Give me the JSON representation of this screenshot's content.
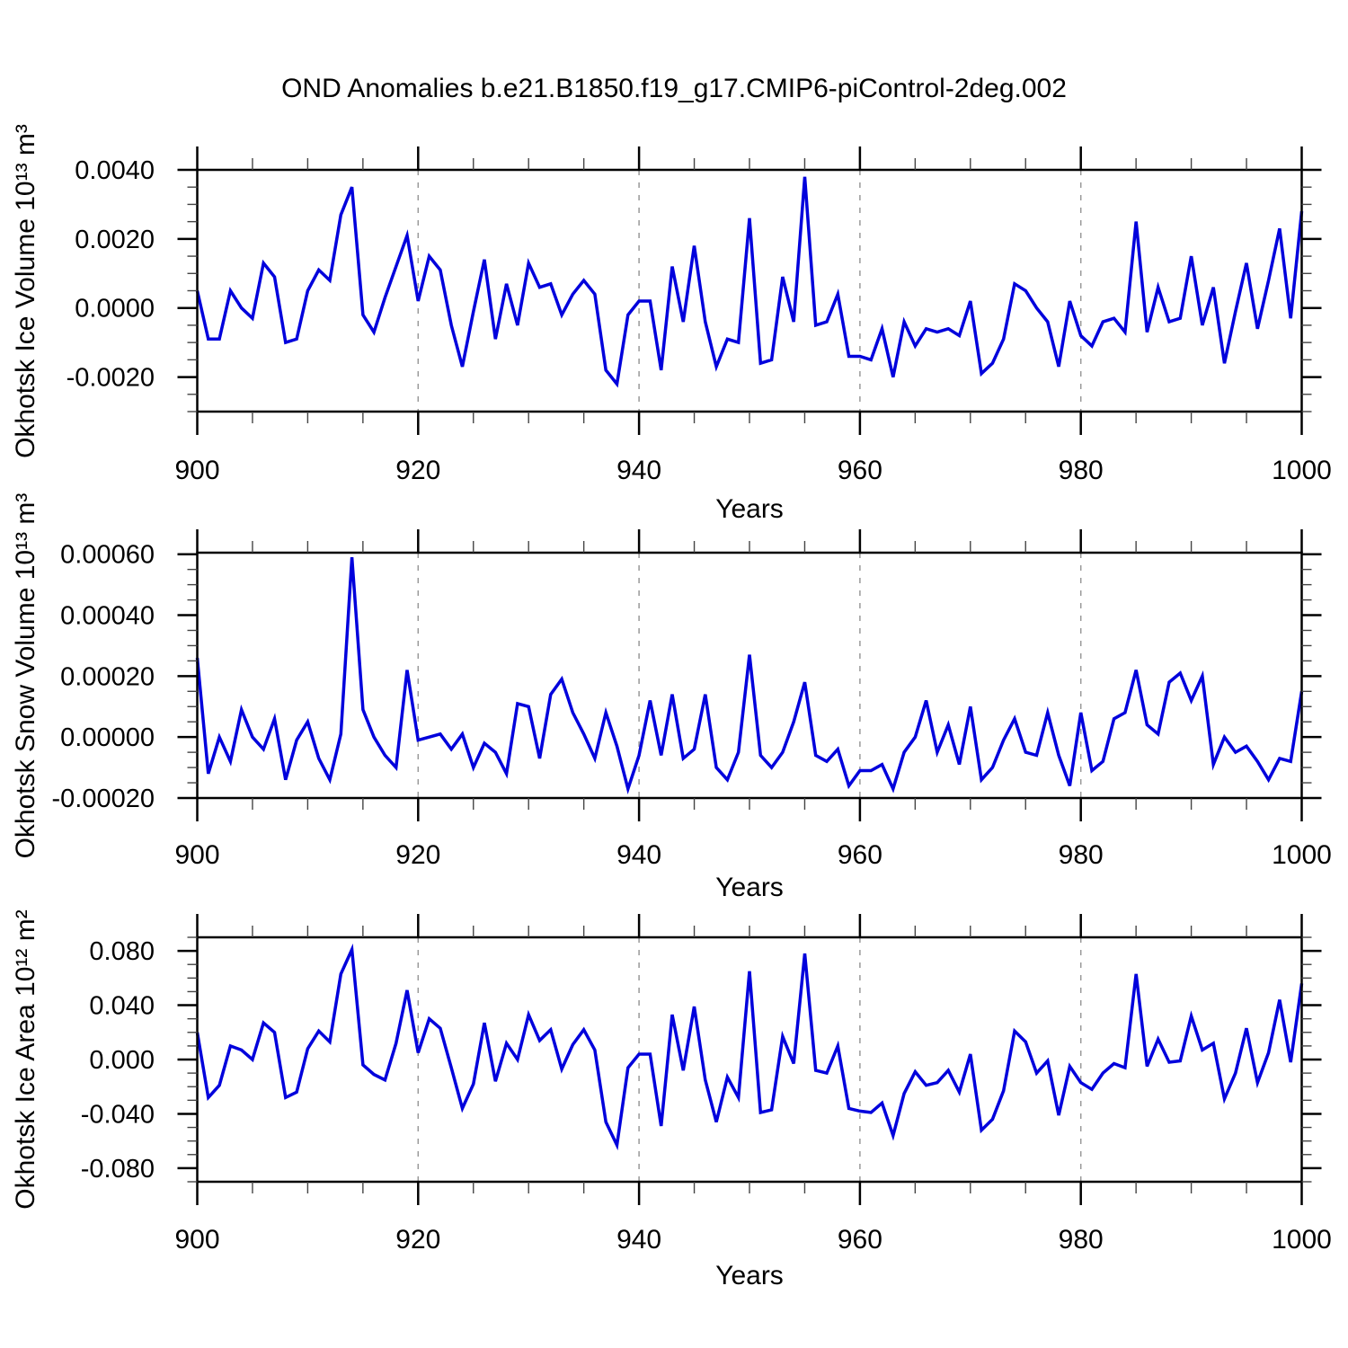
{
  "title": "OND Anomalies b.e21.B1850.f19_g17.CMIP6-piControl-2deg.002",
  "xlabel": "Years",
  "line_color": "#0000DC",
  "chart_data": [
    {
      "type": "line",
      "ylabel": "Okhotsk Ice Volume 10¹³ m³",
      "x_start": 900,
      "x_end": 1000,
      "xticks": [
        900,
        920,
        940,
        960,
        980,
        1000
      ],
      "x_minor_step": 5,
      "grid_x": [
        920,
        940,
        960,
        980
      ],
      "ylim": [
        -0.003,
        0.004
      ],
      "yticks": [
        0.004,
        0.002,
        0.0,
        -0.002
      ],
      "ytick_labels": [
        "0.0040",
        "0.0020",
        "0.0000",
        "-0.0020"
      ],
      "y_minor_step": 0.0005,
      "legend": null,
      "grid": "vertical-dashed",
      "values": [
        0.0005,
        -0.0009,
        -0.0009,
        0.0005,
        0.0,
        -0.0003,
        0.0013,
        0.0009,
        -0.001,
        -0.0009,
        0.0005,
        0.0011,
        0.0008,
        0.0027,
        0.0035,
        -0.0002,
        -0.0007,
        0.0003,
        0.0012,
        0.0021,
        0.0002,
        0.0015,
        0.0011,
        -0.0005,
        -0.0017,
        -0.0001,
        0.0014,
        -0.0009,
        0.0007,
        -0.0005,
        0.0013,
        0.0006,
        0.0007,
        -0.0002,
        0.0004,
        0.0008,
        0.0004,
        -0.0018,
        -0.0022,
        -0.0002,
        0.0002,
        0.0002,
        -0.0018,
        0.0012,
        -0.0004,
        0.0018,
        -0.0004,
        -0.0017,
        -0.0009,
        -0.001,
        0.0026,
        -0.0016,
        -0.0015,
        0.0009,
        -0.0004,
        0.0038,
        -0.0005,
        -0.0004,
        0.0004,
        -0.0014,
        -0.0014,
        -0.0015,
        -0.0006,
        -0.002,
        -0.0004,
        -0.0011,
        -0.0006,
        -0.0007,
        -0.0006,
        -0.0008,
        0.0002,
        -0.0019,
        -0.0016,
        -0.0009,
        0.0007,
        0.0005,
        0.0,
        -0.0004,
        -0.0017,
        0.0002,
        -0.0008,
        -0.0011,
        -0.0004,
        -0.0003,
        -0.0007,
        0.0025,
        -0.0007,
        0.0006,
        -0.0004,
        -0.0003,
        0.0015,
        -0.0005,
        0.0006,
        -0.0016,
        -0.0001,
        0.0013,
        -0.0006,
        0.0008,
        0.0023,
        -0.0003,
        0.0028
      ]
    },
    {
      "type": "line",
      "ylabel": "Okhotsk Snow Volume 10¹³ m³",
      "x_start": 900,
      "x_end": 1000,
      "xticks": [
        900,
        920,
        940,
        960,
        980,
        1000
      ],
      "x_minor_step": 5,
      "grid_x": [
        920,
        940,
        960,
        980
      ],
      "ylim": [
        -0.0002,
        0.000605
      ],
      "yticks": [
        0.0006,
        0.0004,
        0.0002,
        0.0,
        -0.0002
      ],
      "ytick_labels": [
        "0.00060",
        "0.00040",
        "0.00020",
        "0.00000",
        "-0.00020"
      ],
      "y_minor_step": 5e-05,
      "legend": null,
      "grid": "vertical-dashed",
      "values": [
        0.00026,
        -0.00012,
        0.0,
        -8e-05,
        9e-05,
        0.0,
        -4e-05,
        6e-05,
        -0.00014,
        -1e-05,
        5e-05,
        -7e-05,
        -0.00014,
        1e-05,
        0.00059,
        9e-05,
        0.0,
        -6e-05,
        -0.0001,
        0.00022,
        -1e-05,
        0.0,
        1e-05,
        -4e-05,
        1e-05,
        -0.0001,
        -2e-05,
        -5e-05,
        -0.00012,
        0.00011,
        0.0001,
        -7e-05,
        0.00014,
        0.00019,
        8e-05,
        1e-05,
        -7e-05,
        8e-05,
        -3e-05,
        -0.00017,
        -6e-05,
        0.00012,
        -6e-05,
        0.00014,
        -7e-05,
        -4e-05,
        0.00014,
        -0.0001,
        -0.00014,
        -5e-05,
        0.00027,
        -6e-05,
        -0.0001,
        -5e-05,
        5e-05,
        0.00018,
        -6e-05,
        -8e-05,
        -4e-05,
        -0.00016,
        -0.00011,
        -0.00011,
        -9e-05,
        -0.00017,
        -5e-05,
        0.0,
        0.00012,
        -5e-05,
        4e-05,
        -9e-05,
        0.0001,
        -0.00014,
        -0.0001,
        -1e-05,
        6e-05,
        -5e-05,
        -6e-05,
        8e-05,
        -6e-05,
        -0.00016,
        8e-05,
        -0.00011,
        -8e-05,
        6e-05,
        8e-05,
        0.00022,
        4e-05,
        1e-05,
        0.00018,
        0.00021,
        0.00012,
        0.0002,
        -9e-05,
        0.0,
        -5e-05,
        -3e-05,
        -8e-05,
        -0.00014,
        -7e-05,
        -8e-05,
        0.00015
      ]
    },
    {
      "type": "line",
      "ylabel": "Okhotsk Ice Area 10¹² m²",
      "x_start": 900,
      "x_end": 1000,
      "xticks": [
        900,
        920,
        940,
        960,
        980,
        1000
      ],
      "x_minor_step": 5,
      "grid_x": [
        920,
        940,
        960,
        980
      ],
      "ylim": [
        -0.09,
        0.09
      ],
      "yticks": [
        0.08,
        0.04,
        0.0,
        -0.04,
        -0.08
      ],
      "ytick_labels": [
        "0.080",
        "0.040",
        "0.000",
        "-0.040",
        "-0.080"
      ],
      "y_minor_step": 0.01,
      "legend": null,
      "grid": "vertical-dashed",
      "values": [
        0.02,
        -0.028,
        -0.019,
        0.01,
        0.007,
        0.0,
        0.027,
        0.02,
        -0.028,
        -0.024,
        0.008,
        0.021,
        0.013,
        0.063,
        0.081,
        -0.004,
        -0.011,
        -0.015,
        0.012,
        0.051,
        0.005,
        0.03,
        0.023,
        -0.006,
        -0.036,
        -0.018,
        0.027,
        -0.016,
        0.012,
        0.0,
        0.033,
        0.014,
        0.022,
        -0.007,
        0.011,
        0.022,
        0.007,
        -0.046,
        -0.063,
        -0.006,
        0.004,
        0.004,
        -0.049,
        0.033,
        -0.008,
        0.039,
        -0.015,
        -0.046,
        -0.013,
        -0.028,
        0.065,
        -0.039,
        -0.037,
        0.017,
        -0.003,
        0.078,
        -0.008,
        -0.01,
        0.01,
        -0.036,
        -0.038,
        -0.039,
        -0.032,
        -0.056,
        -0.025,
        -0.009,
        -0.019,
        -0.017,
        -0.008,
        -0.024,
        0.004,
        -0.052,
        -0.044,
        -0.023,
        0.021,
        0.013,
        -0.01,
        -0.001,
        -0.041,
        -0.005,
        -0.017,
        -0.022,
        -0.01,
        -0.003,
        -0.006,
        0.063,
        -0.005,
        0.015,
        -0.002,
        -0.001,
        0.032,
        0.007,
        0.012,
        -0.029,
        -0.01,
        0.023,
        -0.017,
        0.005,
        0.044,
        -0.002,
        0.056
      ]
    }
  ]
}
